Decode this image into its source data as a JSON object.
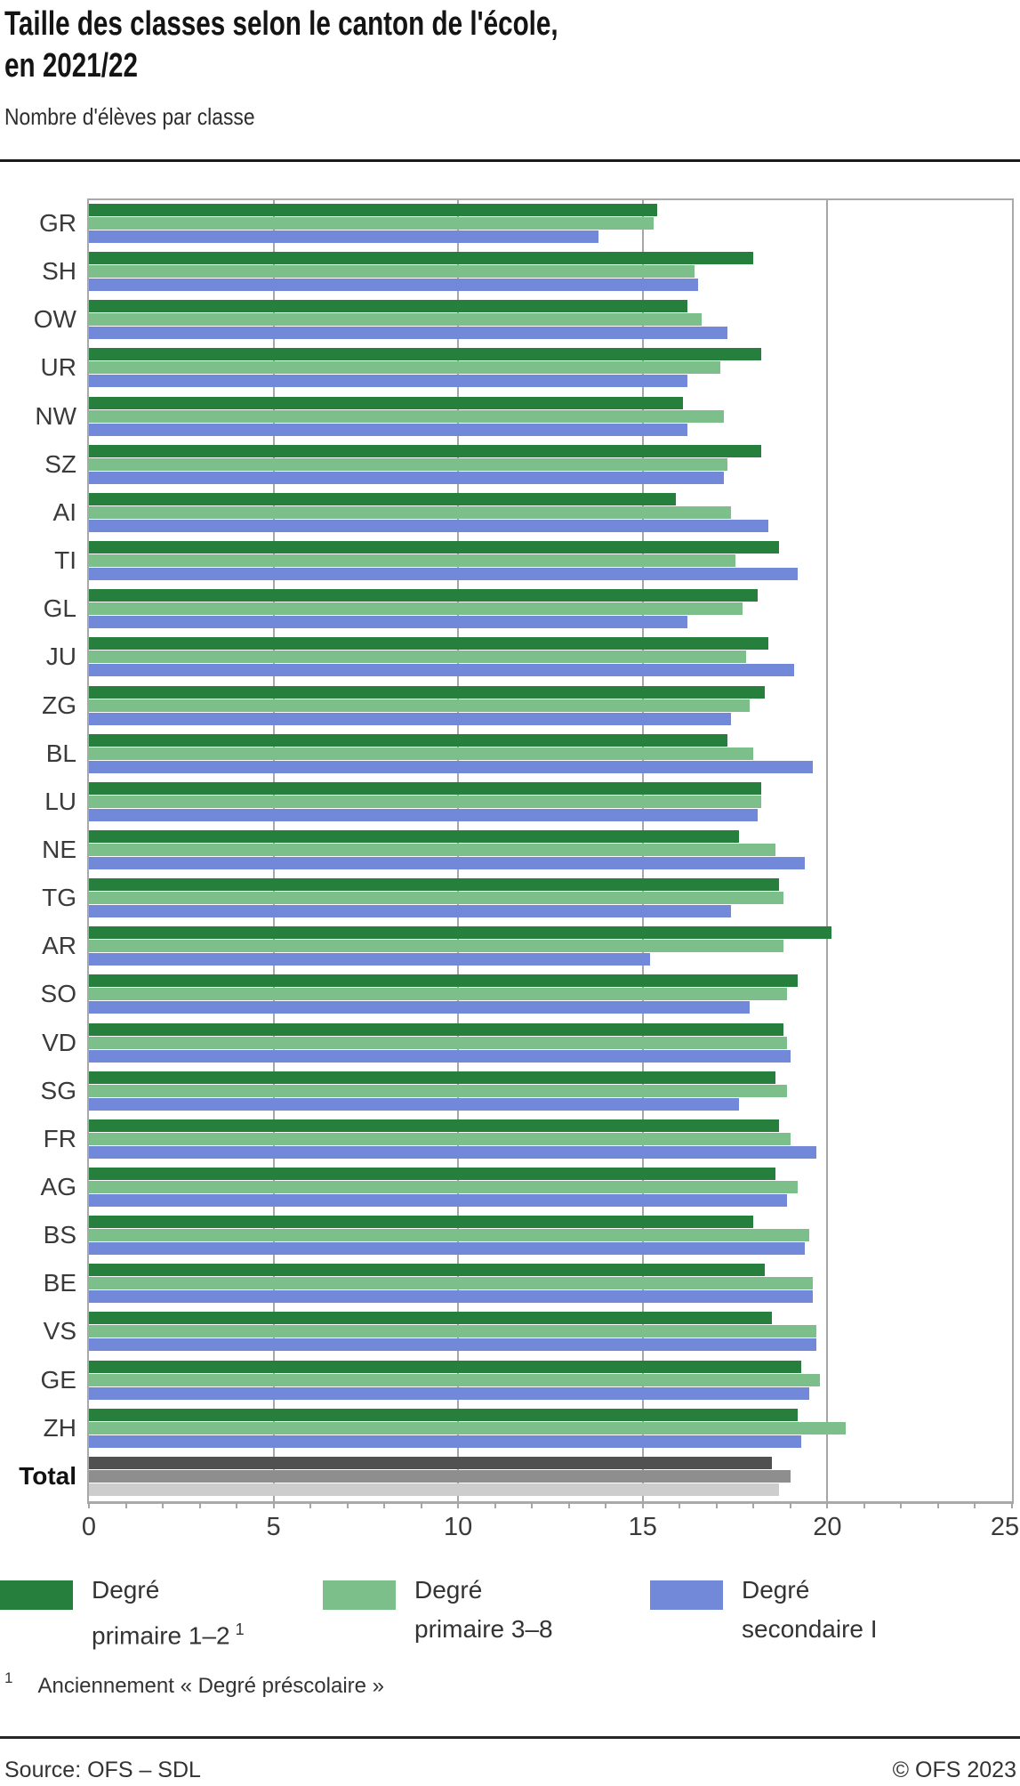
{
  "header": {
    "title_line1": "Taille des classes selon le canton de l'école,",
    "title_line2": "en 2021/22",
    "subtitle": "Nombre d'élèves par classe"
  },
  "chart_data": {
    "type": "bar",
    "orientation": "horizontal",
    "title": "Taille des classes selon le canton de l'école, en 2021/22",
    "subtitle": "Nombre d'élèves par classe",
    "xlabel": "",
    "ylabel": "",
    "xlim": [
      0,
      25
    ],
    "x_major_ticks": [
      0,
      5,
      10,
      15,
      20,
      25
    ],
    "x_minor_tick_step": 1,
    "grid": "vertical",
    "legend_position": "bottom",
    "categories": [
      "GR",
      "SH",
      "OW",
      "UR",
      "NW",
      "SZ",
      "AI",
      "TI",
      "GL",
      "JU",
      "ZG",
      "BL",
      "LU",
      "NE",
      "TG",
      "AR",
      "SO",
      "VD",
      "SG",
      "FR",
      "AG",
      "BS",
      "BE",
      "VS",
      "GE",
      "ZH",
      "Total"
    ],
    "series": [
      {
        "name": "Degré primaire 1–2",
        "footnote_marker": "1",
        "color": "#267f3c",
        "values": [
          15.4,
          18.0,
          16.2,
          18.2,
          16.1,
          18.2,
          15.9,
          18.7,
          18.1,
          18.4,
          18.3,
          17.3,
          18.2,
          17.6,
          18.7,
          20.1,
          19.2,
          18.8,
          18.6,
          18.7,
          18.6,
          18.0,
          18.3,
          18.5,
          19.3,
          19.2,
          18.5
        ]
      },
      {
        "name": "Degré primaire 3–8",
        "color": "#7cbf8a",
        "values": [
          15.3,
          16.4,
          16.6,
          17.1,
          17.2,
          17.3,
          17.4,
          17.5,
          17.7,
          17.8,
          17.9,
          18.0,
          18.2,
          18.6,
          18.8,
          18.8,
          18.9,
          18.9,
          18.9,
          19.0,
          19.2,
          19.5,
          19.6,
          19.7,
          19.8,
          20.5,
          19.0
        ]
      },
      {
        "name": "Degré secondaire I",
        "color": "#7189d8",
        "values": [
          13.8,
          16.5,
          17.3,
          16.2,
          16.2,
          17.2,
          18.4,
          19.2,
          16.2,
          19.1,
          17.4,
          19.6,
          18.1,
          19.4,
          17.4,
          15.2,
          17.9,
          19.0,
          17.6,
          19.7,
          18.9,
          19.4,
          19.6,
          19.7,
          19.5,
          19.3,
          18.7
        ]
      }
    ],
    "total_category": "Total",
    "total_colors": [
      "#515151",
      "#8e8e8e",
      "#cdcdcd"
    ]
  },
  "legend": {
    "items": [
      {
        "line1": "Degré",
        "line2": "primaire 1–2",
        "sup": "1",
        "color": "#267f3c"
      },
      {
        "line1": "Degré",
        "line2": "primaire 3–8",
        "sup": "",
        "color": "#7cbf8a"
      },
      {
        "line1": "Degré",
        "line2": "secondaire I",
        "sup": "",
        "color": "#7189d8"
      }
    ]
  },
  "footnote": {
    "sup": "1",
    "text": "Anciennement « Degré préscolaire »"
  },
  "footer": {
    "source": "Source: OFS – SDL",
    "copyright": "© OFS 2023"
  }
}
